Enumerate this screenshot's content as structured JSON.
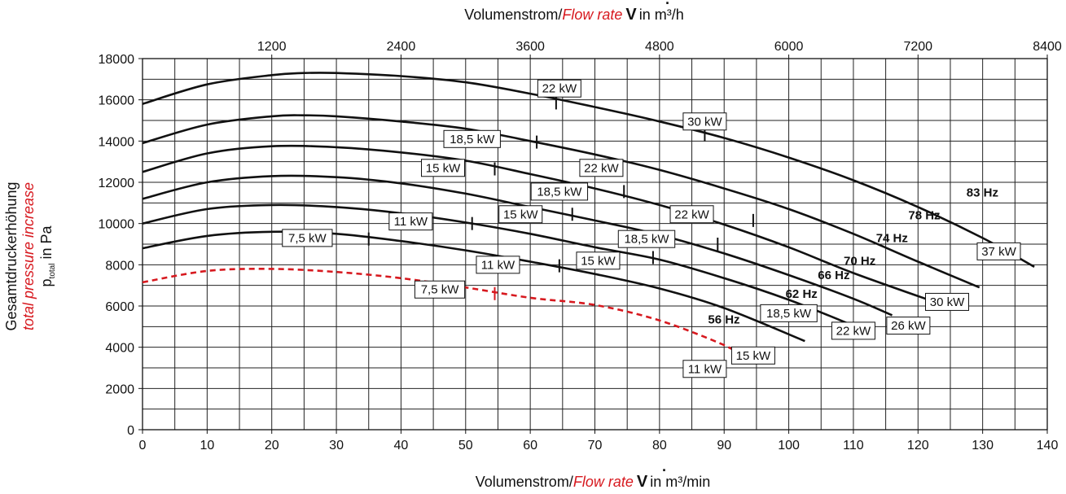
{
  "chart_data": {
    "type": "line",
    "x_axis_bottom": {
      "label_prefix": "Volumenstrom/",
      "label_red": "Flow rate",
      "label_symbol": "V",
      "label_suffix": "in m³/min",
      "min": 0,
      "max": 140,
      "ticks": [
        0,
        10,
        20,
        30,
        40,
        50,
        60,
        70,
        80,
        90,
        100,
        110,
        120,
        130,
        140
      ],
      "minor_step": 5
    },
    "x_axis_top": {
      "label_prefix": "Volumenstrom/",
      "label_red": "Flow rate",
      "label_symbol": "V",
      "label_suffix": "in m³/h",
      "ticks": [
        1200,
        2400,
        3600,
        4800,
        6000,
        7200,
        8400
      ]
    },
    "y_axis": {
      "label_line1": "Gesamtdruckerhöhung",
      "label_line2": "total pressure increase",
      "label_line3_main": "p",
      "label_line3_sub": "total",
      "label_line3_suffix": " in Pa",
      "min": 0,
      "max": 18000,
      "ticks": [
        0,
        2000,
        4000,
        6000,
        8000,
        10000,
        12000,
        14000,
        16000,
        18000
      ],
      "minor_step": 1000
    },
    "grid": true,
    "colors": {
      "curve": "#111111",
      "dashed_curve": "#d7191f",
      "red_text": "#d7191f",
      "grid": "#222222"
    },
    "series": [
      {
        "name": "83 Hz",
        "dashed": false,
        "x": [
          0,
          10,
          20,
          25,
          30,
          40,
          50,
          60,
          70,
          80,
          90,
          100,
          110,
          120,
          130,
          138
        ],
        "y": [
          15800,
          16750,
          17200,
          17300,
          17300,
          17150,
          16850,
          16300,
          15650,
          14950,
          14150,
          13200,
          12100,
          10800,
          9300,
          7900
        ]
      },
      {
        "name": "78 Hz",
        "dashed": false,
        "x": [
          0,
          10,
          20,
          25,
          30,
          40,
          50,
          60,
          70,
          80,
          90,
          100,
          110,
          120,
          129.5
        ],
        "y": [
          13900,
          14800,
          15200,
          15250,
          15200,
          14950,
          14600,
          14000,
          13350,
          12600,
          11700,
          10700,
          9500,
          8150,
          6900
        ]
      },
      {
        "name": "74 Hz",
        "dashed": false,
        "x": [
          0,
          10,
          20,
          30,
          40,
          50,
          60,
          70,
          80,
          90,
          100,
          110,
          123
        ],
        "y": [
          12500,
          13400,
          13750,
          13700,
          13450,
          13050,
          12400,
          11700,
          10900,
          9950,
          8850,
          7600,
          6150
        ]
      },
      {
        "name": "70 Hz",
        "dashed": false,
        "x": [
          0,
          10,
          20,
          30,
          40,
          50,
          60,
          70,
          80,
          90,
          100,
          110,
          116
        ],
        "y": [
          11200,
          12000,
          12300,
          12250,
          11950,
          11450,
          10800,
          10150,
          9450,
          8550,
          7500,
          6350,
          5550
        ]
      },
      {
        "name": "66 Hz",
        "dashed": false,
        "x": [
          0,
          10,
          20,
          30,
          40,
          50,
          60,
          70,
          80,
          90,
          100,
          110,
          111
        ],
        "y": [
          10000,
          10700,
          10900,
          10800,
          10500,
          10050,
          9500,
          8850,
          8250,
          7350,
          6300,
          5050,
          4900
        ]
      },
      {
        "name": "62 Hz",
        "dashed": false,
        "x": [
          0,
          10,
          20,
          30,
          40,
          50,
          60,
          70,
          80,
          90,
          102.5
        ],
        "y": [
          8800,
          9400,
          9600,
          9500,
          9150,
          8700,
          8150,
          7550,
          6850,
          5900,
          4300
        ]
      },
      {
        "name": "56 Hz",
        "dashed": true,
        "x": [
          0,
          10,
          20,
          30,
          40,
          50,
          60,
          70,
          80,
          90,
          93
        ],
        "y": [
          7150,
          7700,
          7800,
          7650,
          7350,
          6900,
          6400,
          6050,
          5300,
          4100,
          3500
        ]
      }
    ],
    "curve_labels": [
      {
        "text": "83 Hz",
        "x": 127.5,
        "y": 11500
      },
      {
        "text": "78 Hz",
        "x": 118.5,
        "y": 10400
      },
      {
        "text": "74 Hz",
        "x": 113.5,
        "y": 9300
      },
      {
        "text": "70 Hz",
        "x": 108.5,
        "y": 8200
      },
      {
        "text": "66 Hz",
        "x": 104.5,
        "y": 7500
      },
      {
        "text": "62 Hz",
        "x": 99.5,
        "y": 6600
      },
      {
        "text": "56 Hz",
        "x": 87.5,
        "y": 5350
      }
    ],
    "power_labels": [
      {
        "text": "22 kW",
        "bx": 64.5,
        "by": 16550,
        "mx": 64,
        "my": 15850,
        "dashed": false
      },
      {
        "text": "30 kW",
        "bx": 87,
        "by": 14950,
        "mx": 87,
        "my": 14300,
        "dashed": false
      },
      {
        "text": "18,5 kW",
        "bx": 51,
        "by": 14100,
        "mx": 61,
        "my": 13950,
        "dashed": false
      },
      {
        "text": "22 kW",
        "bx": 71,
        "by": 12700,
        "mx": 71,
        "my": 12700,
        "dashed": false
      },
      {
        "text": "15 kW",
        "bx": 46.5,
        "by": 12700,
        "mx": 54.5,
        "my": 12650,
        "dashed": false
      },
      {
        "text": "18,5 kW",
        "bx": 64.5,
        "by": 11550,
        "mx": 74.5,
        "my": 11550,
        "dashed": false
      },
      {
        "text": "15 kW",
        "bx": 58.5,
        "by": 10450,
        "mx": 66.5,
        "my": 10450,
        "dashed": false
      },
      {
        "text": "22 kW",
        "bx": 85,
        "by": 10450,
        "mx": 94.5,
        "my": 10150,
        "dashed": false
      },
      {
        "text": "11 kW",
        "bx": 41.5,
        "by": 10100,
        "mx": 51,
        "my": 10000,
        "dashed": false
      },
      {
        "text": "18,5 kW",
        "bx": 78,
        "by": 9250,
        "mx": 89,
        "my": 9000,
        "dashed": false
      },
      {
        "text": "7,5 kW",
        "bx": 25.5,
        "by": 9300,
        "mx": 35,
        "my": 9250,
        "dashed": false
      },
      {
        "text": "15 kW",
        "bx": 70.5,
        "by": 8200,
        "mx": 79,
        "my": 8350,
        "dashed": false
      },
      {
        "text": "11 kW",
        "bx": 55,
        "by": 8000,
        "mx": 64.5,
        "my": 7950,
        "dashed": false
      },
      {
        "text": "7,5 kW",
        "bx": 46,
        "by": 6800,
        "mx": 54.5,
        "my": 6600,
        "dashed": true
      },
      {
        "text": "37 kW",
        "bx": 132.5,
        "by": 8650,
        "mx": 132.5,
        "my": 8650,
        "dashed": false
      },
      {
        "text": "30 kW",
        "bx": 124.5,
        "by": 6200,
        "mx": 124.5,
        "my": 6200,
        "dashed": false
      },
      {
        "text": "18,5 kW",
        "bx": 100,
        "by": 5650,
        "mx": 100,
        "my": 5650,
        "dashed": false
      },
      {
        "text": "26 kW",
        "bx": 118.5,
        "by": 5050,
        "mx": 118.5,
        "my": 5050,
        "dashed": false
      },
      {
        "text": "22 kW",
        "bx": 110,
        "by": 4800,
        "mx": 110,
        "my": 4800,
        "dashed": false
      },
      {
        "text": "15 kW",
        "bx": 94.5,
        "by": 3600,
        "mx": 94.5,
        "my": 3600,
        "dashed": false
      },
      {
        "text": "11 kW",
        "bx": 87,
        "by": 2950,
        "mx": 87,
        "my": 2950,
        "dashed": false
      }
    ]
  }
}
